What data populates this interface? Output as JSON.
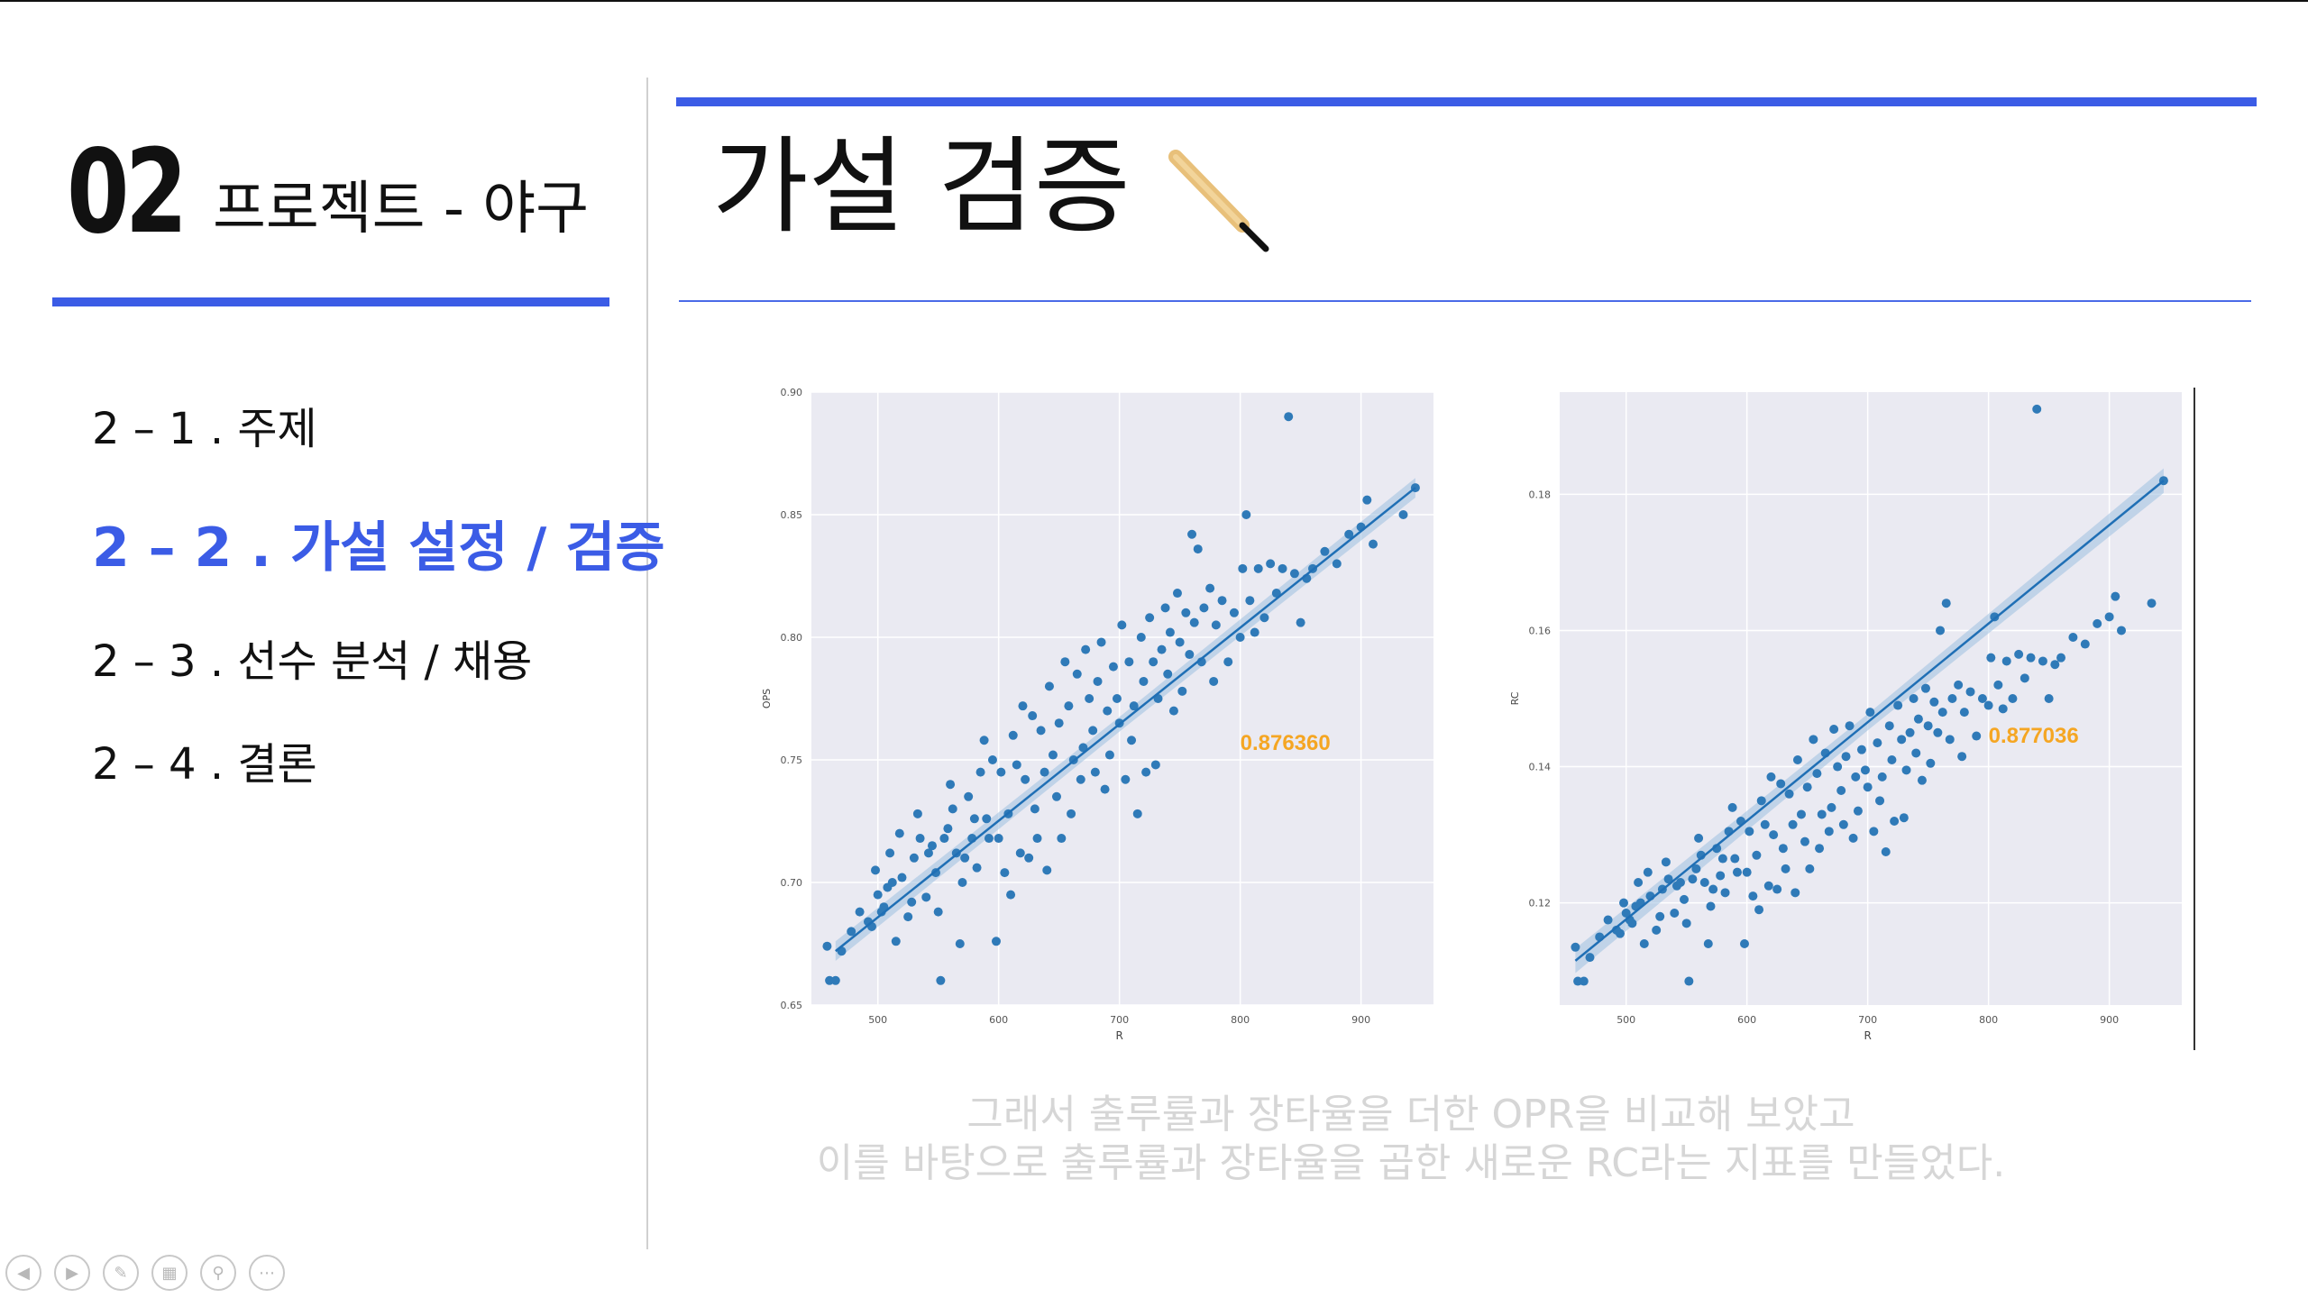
{
  "header": {
    "section_number": "02",
    "section_title": "프로젝트 - 야구",
    "page_title": "가설 검증"
  },
  "menu": {
    "items": [
      {
        "label": "2 – 1 . 주제",
        "active": false
      },
      {
        "label": "2 – 2 . 가설 설정 / 검증",
        "active": true
      },
      {
        "label": "2 – 3 . 선수 분석 / 채용",
        "active": false
      },
      {
        "label": "2 – 4 . 결론",
        "active": false
      }
    ]
  },
  "caption": {
    "line1": "그래서 출루률과 장타율을 더한 OPR을 비교해 보았고",
    "line2": "이를 바탕으로 출루률과 장타율을 곱한 새로운 RC라는 지표를 만들었다."
  },
  "colors": {
    "accent": "#3b5ce6",
    "point": "#2f7ab8",
    "line": "#1f6fb5",
    "panel_bg": "#eaeaf2",
    "annotation": "#f5a623",
    "caption": "#d6d6d6"
  },
  "nav_icons": [
    "prev-icon",
    "next-icon",
    "pen-icon",
    "slides-icon",
    "zoom-icon",
    "more-icon"
  ],
  "chart_data": [
    {
      "type": "scatter",
      "xlabel": "R",
      "ylabel": "OPS",
      "xlim": [
        445,
        960
      ],
      "ylim": [
        0.65,
        0.9
      ],
      "xticks": [
        500,
        600,
        700,
        800,
        900
      ],
      "xtick_labels": [
        "500",
        "600",
        "700",
        "800",
        "900"
      ],
      "yticks": [
        0.65,
        0.7,
        0.75,
        0.8,
        0.85,
        0.9
      ],
      "ytick_labels": [
        "0.65",
        "0.70",
        "0.75",
        "0.80",
        "0.85",
        "0.90"
      ],
      "grid": true,
      "annotation": {
        "text": "0.876360",
        "x": 800,
        "y": 0.754
      },
      "regression": {
        "x": [
          465,
          945
        ],
        "y": [
          0.672,
          0.861
        ],
        "band": [
          0.004,
          0.003,
          0.004
        ]
      },
      "points": [
        [
          458,
          0.674
        ],
        [
          460,
          0.66
        ],
        [
          465,
          0.66
        ],
        [
          470,
          0.672
        ],
        [
          478,
          0.68
        ],
        [
          485,
          0.688
        ],
        [
          492,
          0.684
        ],
        [
          495,
          0.682
        ],
        [
          498,
          0.705
        ],
        [
          500,
          0.695
        ],
        [
          503,
          0.688
        ],
        [
          505,
          0.69
        ],
        [
          508,
          0.698
        ],
        [
          510,
          0.712
        ],
        [
          512,
          0.7
        ],
        [
          515,
          0.676
        ],
        [
          518,
          0.72
        ],
        [
          520,
          0.702
        ],
        [
          525,
          0.686
        ],
        [
          528,
          0.692
        ],
        [
          530,
          0.71
        ],
        [
          533,
          0.728
        ],
        [
          535,
          0.718
        ],
        [
          540,
          0.694
        ],
        [
          542,
          0.712
        ],
        [
          545,
          0.715
        ],
        [
          548,
          0.704
        ],
        [
          550,
          0.688
        ],
        [
          552,
          0.66
        ],
        [
          555,
          0.718
        ],
        [
          558,
          0.722
        ],
        [
          560,
          0.74
        ],
        [
          562,
          0.73
        ],
        [
          565,
          0.712
        ],
        [
          568,
          0.675
        ],
        [
          570,
          0.7
        ],
        [
          572,
          0.71
        ],
        [
          575,
          0.735
        ],
        [
          578,
          0.718
        ],
        [
          580,
          0.726
        ],
        [
          582,
          0.706
        ],
        [
          585,
          0.745
        ],
        [
          588,
          0.758
        ],
        [
          590,
          0.726
        ],
        [
          592,
          0.718
        ],
        [
          595,
          0.75
        ],
        [
          598,
          0.676
        ],
        [
          600,
          0.718
        ],
        [
          602,
          0.745
        ],
        [
          605,
          0.704
        ],
        [
          608,
          0.728
        ],
        [
          610,
          0.695
        ],
        [
          612,
          0.76
        ],
        [
          615,
          0.748
        ],
        [
          618,
          0.712
        ],
        [
          620,
          0.772
        ],
        [
          622,
          0.742
        ],
        [
          625,
          0.71
        ],
        [
          628,
          0.768
        ],
        [
          630,
          0.73
        ],
        [
          632,
          0.718
        ],
        [
          635,
          0.762
        ],
        [
          638,
          0.745
        ],
        [
          640,
          0.705
        ],
        [
          642,
          0.78
        ],
        [
          645,
          0.752
        ],
        [
          648,
          0.735
        ],
        [
          650,
          0.765
        ],
        [
          652,
          0.718
        ],
        [
          655,
          0.79
        ],
        [
          658,
          0.772
        ],
        [
          660,
          0.728
        ],
        [
          662,
          0.75
        ],
        [
          665,
          0.785
        ],
        [
          668,
          0.742
        ],
        [
          670,
          0.755
        ],
        [
          672,
          0.795
        ],
        [
          675,
          0.775
        ],
        [
          678,
          0.762
        ],
        [
          680,
          0.745
        ],
        [
          682,
          0.782
        ],
        [
          685,
          0.798
        ],
        [
          688,
          0.738
        ],
        [
          690,
          0.77
        ],
        [
          692,
          0.752
        ],
        [
          695,
          0.788
        ],
        [
          698,
          0.775
        ],
        [
          700,
          0.765
        ],
        [
          702,
          0.805
        ],
        [
          705,
          0.742
        ],
        [
          708,
          0.79
        ],
        [
          710,
          0.758
        ],
        [
          712,
          0.772
        ],
        [
          715,
          0.728
        ],
        [
          718,
          0.8
        ],
        [
          720,
          0.782
        ],
        [
          722,
          0.745
        ],
        [
          725,
          0.808
        ],
        [
          728,
          0.79
        ],
        [
          730,
          0.748
        ],
        [
          732,
          0.775
        ],
        [
          735,
          0.795
        ],
        [
          738,
          0.812
        ],
        [
          740,
          0.785
        ],
        [
          742,
          0.802
        ],
        [
          745,
          0.77
        ],
        [
          748,
          0.818
        ],
        [
          750,
          0.798
        ],
        [
          752,
          0.778
        ],
        [
          755,
          0.81
        ],
        [
          758,
          0.793
        ],
        [
          760,
          0.842
        ],
        [
          762,
          0.806
        ],
        [
          765,
          0.836
        ],
        [
          768,
          0.79
        ],
        [
          770,
          0.812
        ],
        [
          775,
          0.82
        ],
        [
          778,
          0.782
        ],
        [
          780,
          0.805
        ],
        [
          785,
          0.815
        ],
        [
          790,
          0.79
        ],
        [
          795,
          0.81
        ],
        [
          800,
          0.8
        ],
        [
          802,
          0.828
        ],
        [
          805,
          0.85
        ],
        [
          808,
          0.815
        ],
        [
          812,
          0.802
        ],
        [
          815,
          0.828
        ],
        [
          820,
          0.808
        ],
        [
          825,
          0.83
        ],
        [
          830,
          0.818
        ],
        [
          835,
          0.828
        ],
        [
          840,
          0.89
        ],
        [
          845,
          0.826
        ],
        [
          850,
          0.806
        ],
        [
          855,
          0.824
        ],
        [
          860,
          0.828
        ],
        [
          870,
          0.835
        ],
        [
          880,
          0.83
        ],
        [
          890,
          0.842
        ],
        [
          900,
          0.845
        ],
        [
          905,
          0.856
        ],
        [
          910,
          0.838
        ],
        [
          935,
          0.85
        ],
        [
          945,
          0.861
        ]
      ]
    },
    {
      "type": "scatter",
      "xlabel": "R",
      "ylabel": "RC",
      "xlim": [
        445,
        960
      ],
      "ylim": [
        0.105,
        0.195
      ],
      "xticks": [
        500,
        600,
        700,
        800,
        900
      ],
      "xtick_labels": [
        "500",
        "600",
        "700",
        "800",
        "900"
      ],
      "yticks": [
        0.12,
        0.14,
        0.16,
        0.18
      ],
      "ytick_labels": [
        "0.12",
        "0.14",
        "0.16",
        "0.18"
      ],
      "grid": true,
      "annotation": {
        "text": "0.877036",
        "x": 800,
        "y": 0.1435
      },
      "regression": {
        "x": [
          458,
          945
        ],
        "y": [
          0.1115,
          0.182
        ],
        "band": [
          0.0018,
          0.0012,
          0.0018
        ]
      },
      "points": [
        [
          458,
          0.1135
        ],
        [
          460,
          0.1085
        ],
        [
          465,
          0.1085
        ],
        [
          470,
          0.112
        ],
        [
          478,
          0.115
        ],
        [
          485,
          0.1175
        ],
        [
          492,
          0.116
        ],
        [
          495,
          0.1155
        ],
        [
          498,
          0.12
        ],
        [
          500,
          0.1185
        ],
        [
          503,
          0.1175
        ],
        [
          505,
          0.117
        ],
        [
          508,
          0.1195
        ],
        [
          510,
          0.123
        ],
        [
          512,
          0.12
        ],
        [
          515,
          0.114
        ],
        [
          518,
          0.1245
        ],
        [
          520,
          0.121
        ],
        [
          525,
          0.116
        ],
        [
          528,
          0.118
        ],
        [
          530,
          0.122
        ],
        [
          533,
          0.126
        ],
        [
          535,
          0.1235
        ],
        [
          540,
          0.1185
        ],
        [
          542,
          0.1225
        ],
        [
          545,
          0.123
        ],
        [
          548,
          0.1205
        ],
        [
          550,
          0.117
        ],
        [
          552,
          0.1085
        ],
        [
          555,
          0.1235
        ],
        [
          558,
          0.125
        ],
        [
          560,
          0.1295
        ],
        [
          562,
          0.127
        ],
        [
          565,
          0.123
        ],
        [
          568,
          0.114
        ],
        [
          570,
          0.1195
        ],
        [
          572,
          0.122
        ],
        [
          575,
          0.128
        ],
        [
          578,
          0.124
        ],
        [
          580,
          0.1265
        ],
        [
          582,
          0.1215
        ],
        [
          585,
          0.1305
        ],
        [
          588,
          0.134
        ],
        [
          590,
          0.1265
        ],
        [
          592,
          0.1245
        ],
        [
          595,
          0.132
        ],
        [
          598,
          0.114
        ],
        [
          600,
          0.1245
        ],
        [
          602,
          0.1305
        ],
        [
          605,
          0.121
        ],
        [
          608,
          0.127
        ],
        [
          610,
          0.119
        ],
        [
          612,
          0.135
        ],
        [
          615,
          0.1315
        ],
        [
          618,
          0.1225
        ],
        [
          620,
          0.1385
        ],
        [
          622,
          0.13
        ],
        [
          625,
          0.122
        ],
        [
          628,
          0.1375
        ],
        [
          630,
          0.128
        ],
        [
          632,
          0.125
        ],
        [
          635,
          0.136
        ],
        [
          638,
          0.1315
        ],
        [
          640,
          0.1215
        ],
        [
          642,
          0.141
        ],
        [
          645,
          0.133
        ],
        [
          648,
          0.129
        ],
        [
          650,
          0.137
        ],
        [
          652,
          0.125
        ],
        [
          655,
          0.144
        ],
        [
          658,
          0.139
        ],
        [
          660,
          0.128
        ],
        [
          662,
          0.133
        ],
        [
          665,
          0.142
        ],
        [
          668,
          0.1305
        ],
        [
          670,
          0.134
        ],
        [
          672,
          0.1455
        ],
        [
          675,
          0.14
        ],
        [
          678,
          0.1365
        ],
        [
          680,
          0.1315
        ],
        [
          682,
          0.1415
        ],
        [
          685,
          0.146
        ],
        [
          688,
          0.1295
        ],
        [
          690,
          0.1385
        ],
        [
          692,
          0.1335
        ],
        [
          695,
          0.1425
        ],
        [
          698,
          0.1395
        ],
        [
          700,
          0.137
        ],
        [
          702,
          0.148
        ],
        [
          705,
          0.1305
        ],
        [
          708,
          0.1435
        ],
        [
          710,
          0.135
        ],
        [
          712,
          0.1385
        ],
        [
          715,
          0.1275
        ],
        [
          718,
          0.146
        ],
        [
          720,
          0.141
        ],
        [
          722,
          0.132
        ],
        [
          725,
          0.149
        ],
        [
          728,
          0.144
        ],
        [
          730,
          0.1325
        ],
        [
          732,
          0.1395
        ],
        [
          735,
          0.145
        ],
        [
          738,
          0.15
        ],
        [
          740,
          0.142
        ],
        [
          742,
          0.147
        ],
        [
          745,
          0.138
        ],
        [
          748,
          0.1515
        ],
        [
          750,
          0.146
        ],
        [
          752,
          0.1405
        ],
        [
          755,
          0.1495
        ],
        [
          758,
          0.145
        ],
        [
          760,
          0.16
        ],
        [
          762,
          0.148
        ],
        [
          765,
          0.164
        ],
        [
          768,
          0.144
        ],
        [
          770,
          0.15
        ],
        [
          775,
          0.152
        ],
        [
          778,
          0.1415
        ],
        [
          780,
          0.148
        ],
        [
          785,
          0.151
        ],
        [
          790,
          0.1445
        ],
        [
          795,
          0.15
        ],
        [
          800,
          0.149
        ],
        [
          802,
          0.156
        ],
        [
          805,
          0.162
        ],
        [
          808,
          0.152
        ],
        [
          812,
          0.1485
        ],
        [
          815,
          0.1555
        ],
        [
          820,
          0.15
        ],
        [
          825,
          0.1565
        ],
        [
          830,
          0.153
        ],
        [
          835,
          0.156
        ],
        [
          840,
          0.1925
        ],
        [
          845,
          0.1555
        ],
        [
          850,
          0.15
        ],
        [
          855,
          0.155
        ],
        [
          860,
          0.156
        ],
        [
          870,
          0.159
        ],
        [
          880,
          0.158
        ],
        [
          890,
          0.161
        ],
        [
          900,
          0.162
        ],
        [
          905,
          0.165
        ],
        [
          910,
          0.16
        ],
        [
          935,
          0.164
        ],
        [
          945,
          0.182
        ]
      ]
    }
  ]
}
